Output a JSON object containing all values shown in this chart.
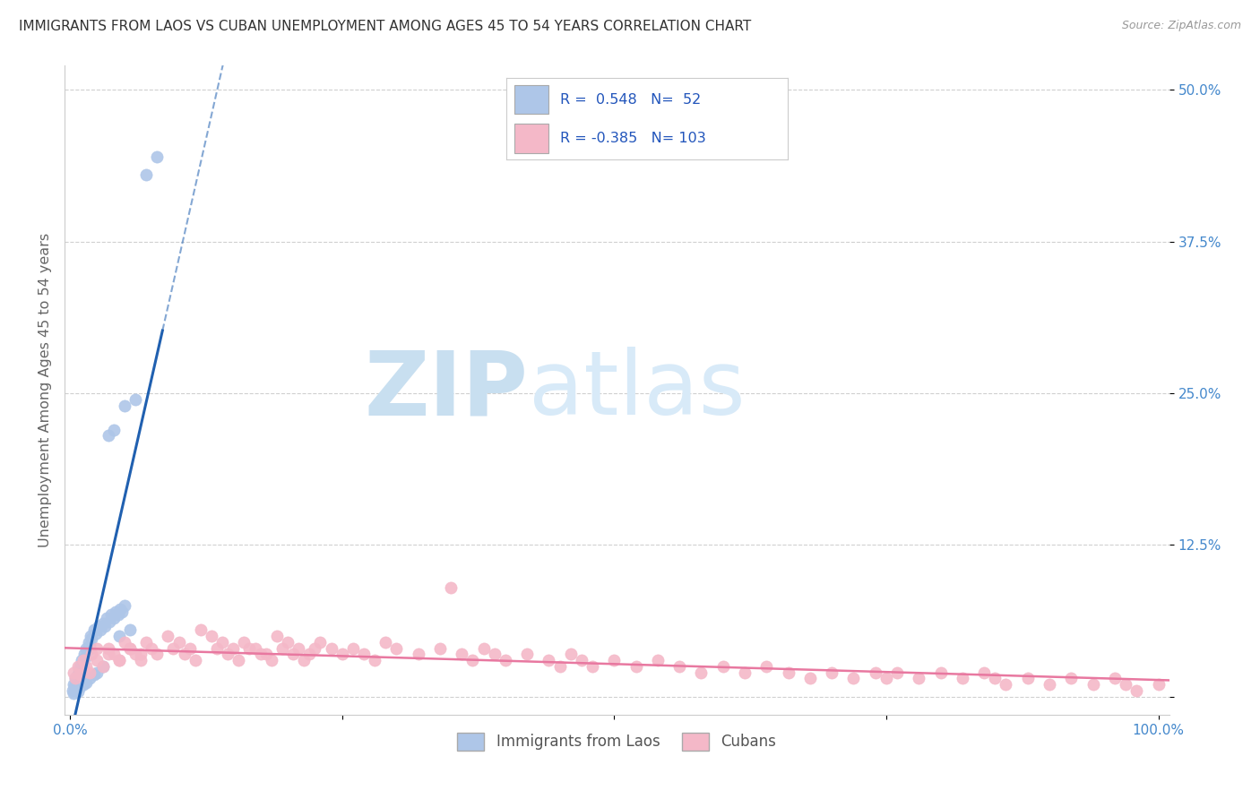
{
  "title": "IMMIGRANTS FROM LAOS VS CUBAN UNEMPLOYMENT AMONG AGES 45 TO 54 YEARS CORRELATION CHART",
  "source_text": "Source: ZipAtlas.com",
  "ylabel": "Unemployment Among Ages 45 to 54 years",
  "xlim": [
    -0.005,
    1.01
  ],
  "ylim": [
    -0.015,
    0.52
  ],
  "x_ticks": [
    0.0,
    0.25,
    0.5,
    0.75,
    1.0
  ],
  "x_tick_labels": [
    "0.0%",
    "",
    "",
    "",
    "100.0%"
  ],
  "y_ticks": [
    0.0,
    0.125,
    0.25,
    0.375,
    0.5
  ],
  "y_tick_labels": [
    "",
    "12.5%",
    "25.0%",
    "37.5%",
    "50.0%"
  ],
  "blue_R": 0.548,
  "blue_N": 52,
  "pink_R": -0.385,
  "pink_N": 103,
  "blue_color": "#aec6e8",
  "pink_color": "#f4b8c8",
  "blue_line_color": "#2060b0",
  "pink_line_color": "#e878a0",
  "watermark_zip_color": "#c8dff0",
  "watermark_atlas_color": "#d8eaf8",
  "legend_label_blue": "Immigrants from Laos",
  "legend_label_pink": "Cubans",
  "blue_scatter_x": [
    0.002,
    0.003,
    0.004,
    0.005,
    0.006,
    0.007,
    0.008,
    0.009,
    0.01,
    0.011,
    0.012,
    0.013,
    0.014,
    0.015,
    0.016,
    0.017,
    0.018,
    0.019,
    0.02,
    0.022,
    0.024,
    0.026,
    0.028,
    0.03,
    0.032,
    0.034,
    0.036,
    0.038,
    0.04,
    0.042,
    0.044,
    0.046,
    0.048,
    0.05,
    0.003,
    0.005,
    0.007,
    0.009,
    0.012,
    0.015,
    0.018,
    0.022,
    0.025,
    0.03,
    0.035,
    0.04,
    0.05,
    0.06,
    0.07,
    0.08,
    0.045,
    0.055
  ],
  "blue_scatter_y": [
    0.005,
    0.01,
    0.008,
    0.015,
    0.012,
    0.018,
    0.02,
    0.025,
    0.022,
    0.03,
    0.028,
    0.035,
    0.032,
    0.04,
    0.038,
    0.045,
    0.042,
    0.05,
    0.048,
    0.055,
    0.052,
    0.058,
    0.055,
    0.06,
    0.058,
    0.065,
    0.062,
    0.068,
    0.065,
    0.07,
    0.068,
    0.072,
    0.07,
    0.075,
    0.003,
    0.006,
    0.004,
    0.008,
    0.01,
    0.012,
    0.015,
    0.018,
    0.02,
    0.025,
    0.215,
    0.22,
    0.24,
    0.245,
    0.43,
    0.445,
    0.05,
    0.055
  ],
  "pink_scatter_x": [
    0.003,
    0.005,
    0.007,
    0.009,
    0.012,
    0.015,
    0.018,
    0.02,
    0.025,
    0.03,
    0.035,
    0.04,
    0.045,
    0.05,
    0.055,
    0.06,
    0.065,
    0.07,
    0.075,
    0.08,
    0.09,
    0.1,
    0.11,
    0.12,
    0.13,
    0.14,
    0.15,
    0.16,
    0.17,
    0.18,
    0.19,
    0.2,
    0.21,
    0.22,
    0.23,
    0.24,
    0.25,
    0.26,
    0.27,
    0.28,
    0.29,
    0.3,
    0.32,
    0.34,
    0.35,
    0.36,
    0.37,
    0.38,
    0.39,
    0.4,
    0.42,
    0.44,
    0.45,
    0.46,
    0.47,
    0.48,
    0.5,
    0.52,
    0.54,
    0.56,
    0.58,
    0.6,
    0.62,
    0.64,
    0.66,
    0.68,
    0.7,
    0.72,
    0.74,
    0.75,
    0.76,
    0.78,
    0.8,
    0.82,
    0.84,
    0.85,
    0.86,
    0.88,
    0.9,
    0.92,
    0.94,
    0.96,
    0.97,
    0.98,
    1.0,
    0.025,
    0.035,
    0.045,
    0.055,
    0.065,
    0.095,
    0.105,
    0.115,
    0.135,
    0.145,
    0.155,
    0.165,
    0.175,
    0.185,
    0.195,
    0.205,
    0.215,
    0.225
  ],
  "pink_scatter_y": [
    0.02,
    0.015,
    0.025,
    0.018,
    0.03,
    0.025,
    0.02,
    0.035,
    0.03,
    0.025,
    0.04,
    0.035,
    0.03,
    0.045,
    0.04,
    0.035,
    0.03,
    0.045,
    0.04,
    0.035,
    0.05,
    0.045,
    0.04,
    0.055,
    0.05,
    0.045,
    0.04,
    0.045,
    0.04,
    0.035,
    0.05,
    0.045,
    0.04,
    0.035,
    0.045,
    0.04,
    0.035,
    0.04,
    0.035,
    0.03,
    0.045,
    0.04,
    0.035,
    0.04,
    0.09,
    0.035,
    0.03,
    0.04,
    0.035,
    0.03,
    0.035,
    0.03,
    0.025,
    0.035,
    0.03,
    0.025,
    0.03,
    0.025,
    0.03,
    0.025,
    0.02,
    0.025,
    0.02,
    0.025,
    0.02,
    0.015,
    0.02,
    0.015,
    0.02,
    0.015,
    0.02,
    0.015,
    0.02,
    0.015,
    0.02,
    0.015,
    0.01,
    0.015,
    0.01,
    0.015,
    0.01,
    0.015,
    0.01,
    0.005,
    0.01,
    0.04,
    0.035,
    0.03,
    0.04,
    0.035,
    0.04,
    0.035,
    0.03,
    0.04,
    0.035,
    0.03,
    0.04,
    0.035,
    0.03,
    0.04,
    0.035,
    0.03,
    0.04
  ]
}
